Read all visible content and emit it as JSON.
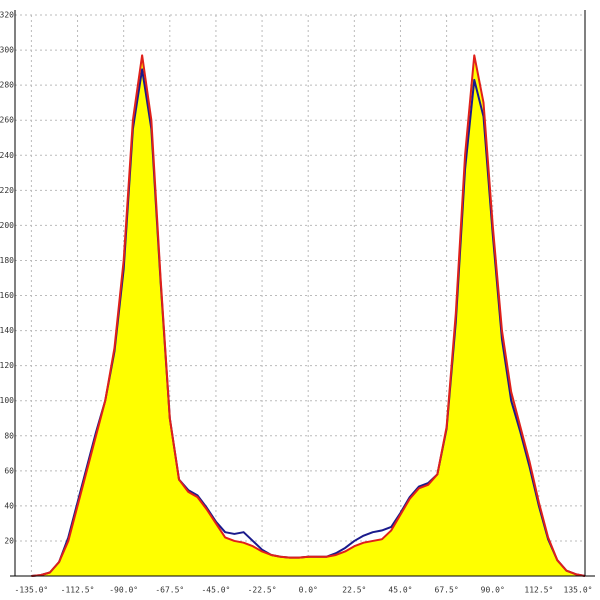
{
  "chart_data": {
    "type": "area-line",
    "x": [
      -135,
      -130.5,
      -126,
      -121.5,
      -117,
      -112.5,
      -108,
      -103.5,
      -99,
      -94.5,
      -90,
      -85.5,
      -81,
      -76.5,
      -72,
      -67.5,
      -63,
      -58.5,
      -54,
      -49.5,
      -45,
      -40.5,
      -36,
      -31.5,
      -27,
      -22.5,
      -18,
      -13.5,
      -9,
      -4.5,
      0,
      4.5,
      9,
      13.5,
      18,
      22.5,
      27,
      31.5,
      36,
      40.5,
      45,
      49.5,
      54,
      58.5,
      63,
      67.5,
      72,
      76.5,
      81,
      85.5,
      90,
      94.5,
      99,
      103.5,
      108,
      112.5,
      117,
      121.5,
      126,
      130.5,
      135
    ],
    "series": [
      {
        "name": "blue",
        "color": "#1a1a8c",
        "values": [
          0,
          0.5,
          2,
          8,
          22,
          42,
          62,
          82,
          100,
          128,
          175,
          255,
          289,
          255,
          168,
          90,
          55,
          49,
          46,
          39,
          31,
          25,
          24,
          25,
          20,
          15,
          12,
          11,
          10.5,
          10.5,
          11,
          11,
          11,
          13,
          16,
          20,
          23,
          25,
          26,
          28,
          36,
          45,
          51,
          53,
          58,
          84,
          145,
          232,
          283,
          262,
          195,
          135,
          100,
          82,
          62,
          40,
          21,
          9,
          3,
          1,
          0
        ]
      },
      {
        "name": "red",
        "color": "#e0201a",
        "fill": "#ffff00",
        "values": [
          0,
          0.5,
          2,
          8,
          20,
          40,
          60,
          80,
          100,
          130,
          180,
          260,
          297,
          260,
          170,
          90,
          55,
          48,
          45,
          38,
          30,
          22,
          20,
          19,
          17,
          14,
          12,
          11,
          10.5,
          10.5,
          11,
          11,
          11,
          12,
          14,
          17,
          19,
          20,
          21,
          26,
          35,
          44,
          50,
          52,
          58,
          85,
          150,
          240,
          297,
          270,
          200,
          140,
          105,
          85,
          65,
          42,
          22,
          9,
          3,
          1,
          0
        ]
      }
    ],
    "xlim": [
      -143,
      135
    ],
    "ylim": [
      0,
      320
    ],
    "xticks": [
      {
        "value": -135,
        "label": "-135.0°"
      },
      {
        "value": -112.5,
        "label": "-112.5°"
      },
      {
        "value": -90,
        "label": "-90.0°"
      },
      {
        "value": -67.5,
        "label": "-67.5°"
      },
      {
        "value": -45,
        "label": "-45.0°"
      },
      {
        "value": -22.5,
        "label": "-22.5°"
      },
      {
        "value": 0,
        "label": "0.0°"
      },
      {
        "value": 22.5,
        "label": "22.5°"
      },
      {
        "value": 45,
        "label": "45.0°"
      },
      {
        "value": 67.5,
        "label": "67.5°"
      },
      {
        "value": 90,
        "label": "90.0°"
      },
      {
        "value": 112.5,
        "label": "112.5°"
      },
      {
        "value": 135,
        "label": "135.0°"
      }
    ],
    "yticks": [
      20,
      40,
      60,
      80,
      100,
      120,
      140,
      160,
      180,
      200,
      220,
      240,
      260,
      280,
      300,
      320
    ],
    "grid": true
  }
}
